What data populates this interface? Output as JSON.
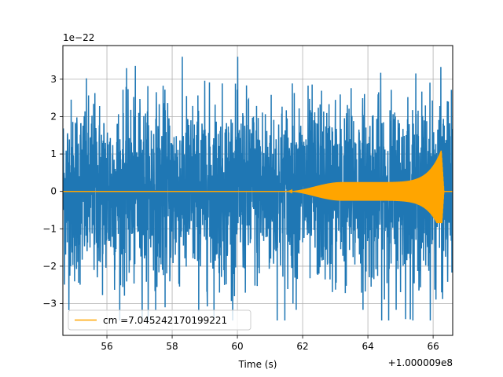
{
  "chart_data": {
    "type": "line",
    "title": "",
    "xlabel": "Time (s)",
    "ylabel": "",
    "x_offset_label": "+1.000009e8",
    "y_scale_label": "1e−22",
    "xlim": [
      54.65,
      66.6
    ],
    "ylim": [
      -3.85,
      3.9
    ],
    "x_ticks": [
      56,
      58,
      60,
      62,
      64,
      66
    ],
    "y_ticks": [
      -3,
      -2,
      -1,
      0,
      1,
      2,
      3
    ],
    "grid": true,
    "legend": {
      "placement": "lower-left",
      "entries": [
        {
          "label": "cm =7.045242170199221",
          "color": "#ffa500"
        }
      ]
    },
    "series": [
      {
        "color": "#1f77b4",
        "kind": "noise",
        "x_range": [
          54.65,
          66.6
        ],
        "typical_amplitude": 2.2,
        "max_peak": 3.6,
        "min_trough": -3.45
      },
      {
        "name": "cm =7.045242170199221",
        "color": "#ffa500",
        "kind": "chirp",
        "x_range": [
          54.65,
          66.6
        ],
        "onset_x": 61.5,
        "plateau_x": 63.2,
        "plateau_amplitude": 0.25,
        "peak_x": 66.25,
        "peak_max": 1.1,
        "peak_min": -0.85
      }
    ]
  }
}
